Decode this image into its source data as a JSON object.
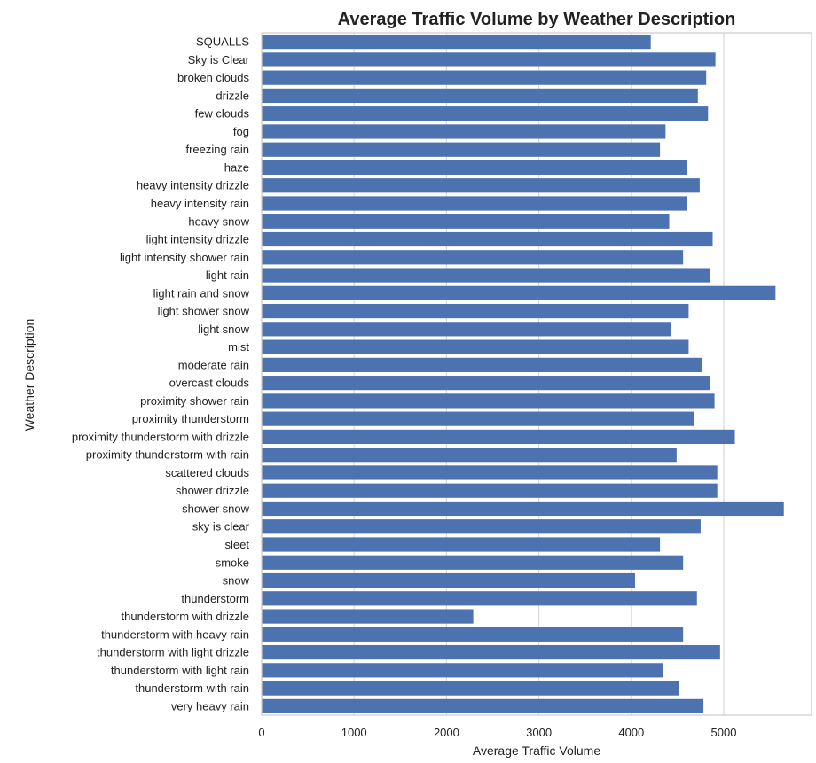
{
  "chart_data": {
    "type": "bar",
    "orientation": "horizontal",
    "title": "Average Traffic Volume by Weather Description",
    "xlabel": "Average Traffic Volume",
    "ylabel": "Weather Description",
    "xlim": [
      0,
      5950
    ],
    "xticks": [
      0,
      1000,
      2000,
      3000,
      4000,
      5000
    ],
    "grid": true,
    "bar_color": "#4c72b0",
    "categories": [
      "SQUALLS",
      "Sky is Clear",
      "broken clouds",
      "drizzle",
      "few clouds",
      "fog",
      "freezing rain",
      "haze",
      "heavy intensity drizzle",
      "heavy intensity rain",
      "heavy snow",
      "light intensity drizzle",
      "light intensity shower rain",
      "light rain",
      "light rain and snow",
      "light shower snow",
      "light snow",
      "mist",
      "moderate rain",
      "overcast clouds",
      "proximity shower rain",
      "proximity thunderstorm",
      "proximity thunderstorm with drizzle",
      "proximity thunderstorm with rain",
      "scattered clouds",
      "shower drizzle",
      "shower snow",
      "sky is clear",
      "sleet",
      "smoke",
      "snow",
      "thunderstorm",
      "thunderstorm with drizzle",
      "thunderstorm with heavy rain",
      "thunderstorm with light drizzle",
      "thunderstorm with light rain",
      "thunderstorm with rain",
      "very heavy rain"
    ],
    "values": [
      4210,
      4910,
      4810,
      4720,
      4830,
      4370,
      4310,
      4600,
      4740,
      4600,
      4410,
      4880,
      4560,
      4850,
      5560,
      4620,
      4430,
      4620,
      4770,
      4850,
      4900,
      4680,
      5120,
      4490,
      4930,
      4930,
      5650,
      4750,
      4310,
      4560,
      4040,
      4710,
      2290,
      4560,
      4960,
      4340,
      4520,
      4780
    ]
  }
}
